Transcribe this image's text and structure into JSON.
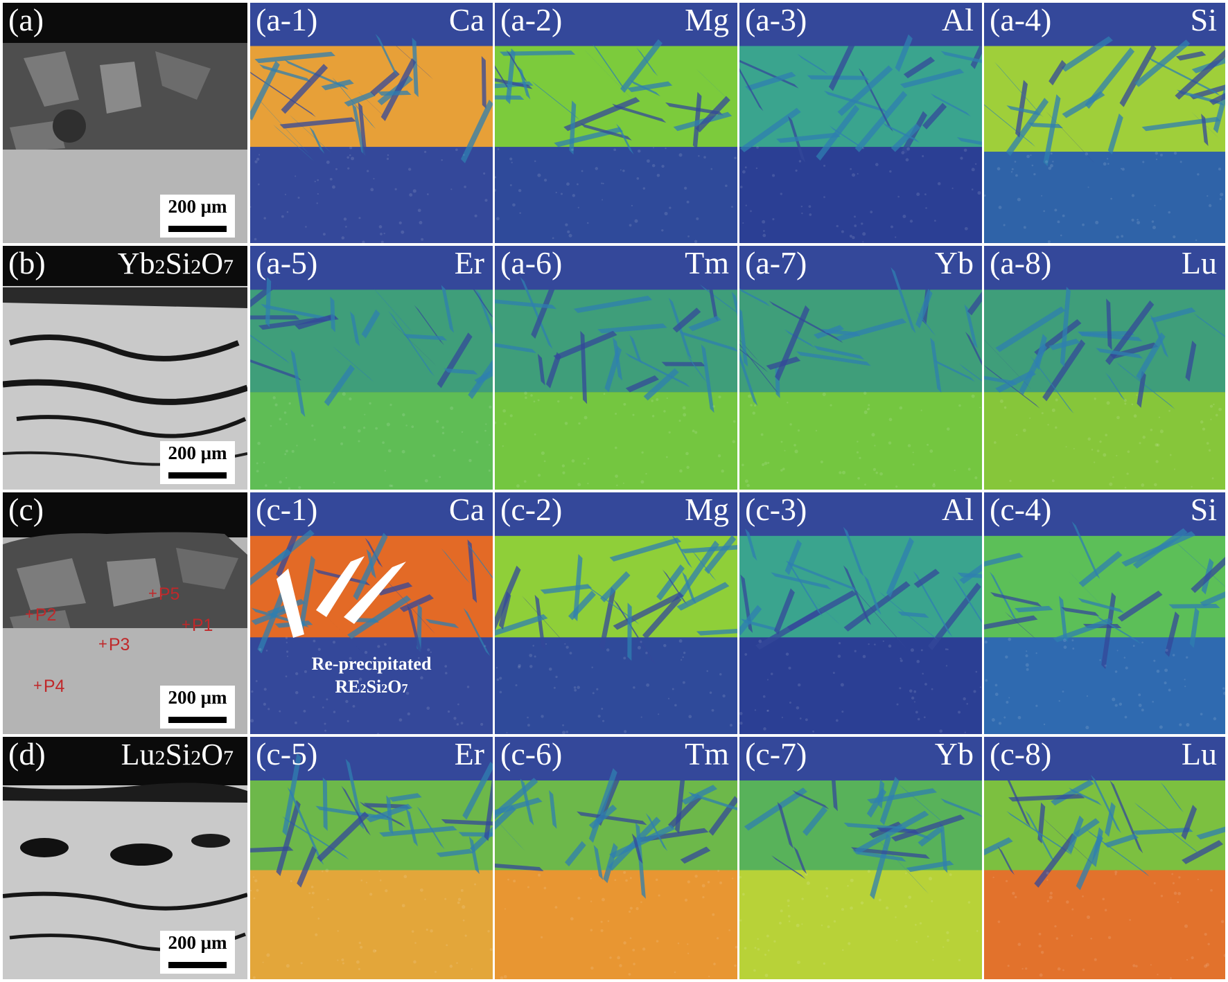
{
  "colors": {
    "map_background": "#34489a",
    "sem_dark": "#151515",
    "sem_grey": "#b5b5b5",
    "point_marker": "#c0282a"
  },
  "scale_bar_text": "200 μm",
  "sem": {
    "a": {
      "label": "(a)"
    },
    "b": {
      "label": "(b)",
      "material_prefix": "Yb",
      "material_sub1": "2",
      "material_mid": "Si",
      "material_sub2": "2",
      "material_o": "O",
      "material_sub3": "7"
    },
    "c": {
      "label": "(c)"
    },
    "d": {
      "label": "(d)",
      "material_prefix": "Lu",
      "material_sub1": "2",
      "material_mid": "Si",
      "material_sub2": "2",
      "material_o": "O",
      "material_sub3": "7"
    }
  },
  "points": [
    "P1",
    "P2",
    "P3",
    "P4",
    "P5"
  ],
  "annotation": {
    "line1": "Re-precipitated",
    "line2_a": "RE",
    "line2_b": "2",
    "line2_c": "Si",
    "line2_d": "2",
    "line2_e": "O",
    "line2_f": "7"
  },
  "maps": {
    "a1": {
      "label": "(a-1)",
      "element": "Ca"
    },
    "a2": {
      "label": "(a-2)",
      "element": "Mg"
    },
    "a3": {
      "label": "(a-3)",
      "element": "Al"
    },
    "a4": {
      "label": "(a-4)",
      "element": "Si"
    },
    "a5": {
      "label": "(a-5)",
      "element": "Er"
    },
    "a6": {
      "label": "(a-6)",
      "element": "Tm"
    },
    "a7": {
      "label": "(a-7)",
      "element": "Yb"
    },
    "a8": {
      "label": "(a-8)",
      "element": "Lu"
    },
    "c1": {
      "label": "(c-1)",
      "element": "Ca"
    },
    "c2": {
      "label": "(c-2)",
      "element": "Mg"
    },
    "c3": {
      "label": "(c-3)",
      "element": "Al"
    },
    "c4": {
      "label": "(c-4)",
      "element": "Si"
    },
    "c5": {
      "label": "(c-5)",
      "element": "Er"
    },
    "c6": {
      "label": "(c-6)",
      "element": "Tm"
    },
    "c7": {
      "label": "(c-7)",
      "element": "Yb"
    },
    "c8": {
      "label": "(c-8)",
      "element": "Lu"
    }
  }
}
